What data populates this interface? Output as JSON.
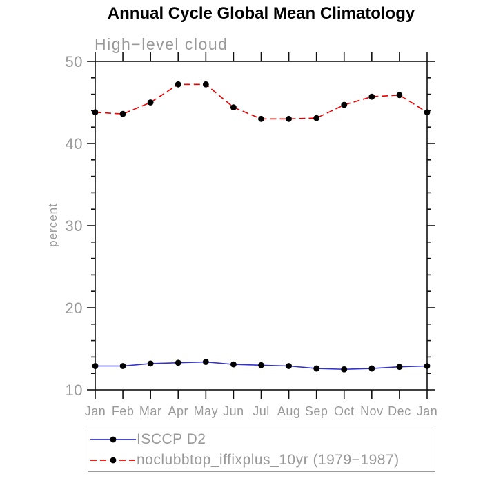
{
  "chart_data": {
    "type": "line",
    "title": "Annual Cycle Global Mean Climatology",
    "subtitle": "High−level cloud",
    "ylabel": "percent",
    "xlabel": "",
    "categories": [
      "Jan",
      "Feb",
      "Mar",
      "Apr",
      "May",
      "Jun",
      "Jul",
      "Aug",
      "Sep",
      "Oct",
      "Nov",
      "Dec",
      "Jan"
    ],
    "ylim": [
      10,
      50
    ],
    "yticks_major": [
      10,
      20,
      30,
      40,
      50
    ],
    "ytick_minor_step": 2,
    "grid": false,
    "legend_position": "bottom-left-box",
    "series": [
      {
        "name": "ISCCP D2",
        "color": "#3333cc",
        "style": "solid",
        "marker": "filled-circle",
        "marker_color": "#000000",
        "values": [
          12.9,
          12.9,
          13.2,
          13.3,
          13.4,
          13.1,
          13.0,
          12.9,
          12.6,
          12.5,
          12.6,
          12.8,
          12.9
        ]
      },
      {
        "name": "noclubbtop_iffixplus_10yr (1979−1987)",
        "color": "#ee0000",
        "style": "dashed",
        "marker": "filled-circle",
        "marker_color": "#000000",
        "values": [
          43.8,
          43.6,
          45.0,
          47.2,
          47.2,
          44.4,
          43.0,
          43.0,
          43.1,
          44.7,
          45.7,
          45.9,
          43.8
        ]
      }
    ]
  }
}
